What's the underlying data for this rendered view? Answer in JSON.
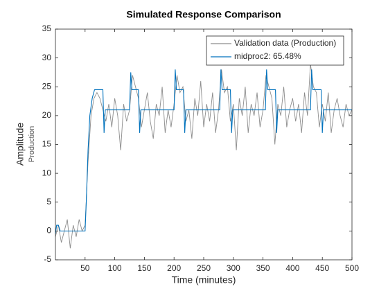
{
  "chart_data": {
    "type": "line",
    "title": "Simulated Response Comparison",
    "xlabel": "Time (minutes)",
    "ylabel": "Amplitude",
    "ylabel2": "Production",
    "xlim": [
      0,
      500
    ],
    "xticks": [
      50,
      100,
      150,
      200,
      250,
      300,
      350,
      400,
      450,
      500
    ],
    "ylim": [
      -5,
      35
    ],
    "yticks": [
      -5,
      0,
      5,
      10,
      15,
      20,
      25,
      30,
      35
    ],
    "grid": false,
    "legend": "northeast",
    "series": [
      {
        "name": "Validation data (Production)",
        "color": "#8c8c8c",
        "x": [
          0,
          5,
          10,
          15,
          20,
          25,
          30,
          35,
          40,
          45,
          50,
          55,
          60,
          65,
          70,
          75,
          80,
          85,
          90,
          95,
          100,
          105,
          110,
          115,
          120,
          125,
          130,
          135,
          140,
          145,
          150,
          155,
          160,
          165,
          170,
          175,
          180,
          185,
          190,
          195,
          200,
          205,
          210,
          215,
          220,
          225,
          230,
          235,
          240,
          245,
          250,
          255,
          260,
          265,
          270,
          275,
          280,
          285,
          290,
          295,
          300,
          305,
          310,
          315,
          320,
          325,
          330,
          335,
          340,
          345,
          350,
          355,
          360,
          365,
          370,
          375,
          380,
          385,
          390,
          395,
          400,
          405,
          410,
          415,
          420,
          425,
          430,
          435,
          440,
          445,
          450,
          455,
          460,
          465,
          470,
          475,
          480,
          485,
          490,
          495,
          500
        ],
        "values": [
          -1,
          1,
          -2,
          0,
          2,
          -3,
          1,
          -1,
          2,
          0,
          1,
          12,
          20,
          23,
          24,
          23,
          21,
          19,
          22,
          18,
          23,
          20,
          14,
          22,
          19,
          21,
          27,
          25,
          23,
          18,
          21,
          24,
          19,
          16,
          22,
          20,
          25,
          17,
          21,
          18,
          22,
          27,
          24,
          25,
          19,
          21,
          16,
          23,
          20,
          26,
          18,
          22,
          19,
          24,
          17,
          21,
          28,
          24,
          25,
          19,
          22,
          14,
          23,
          20,
          25,
          17,
          22,
          20,
          24,
          18,
          21,
          27,
          25,
          23,
          15,
          22,
          20,
          25,
          18,
          21,
          23,
          19,
          22,
          17,
          24,
          20,
          29,
          25,
          24,
          18,
          22,
          19,
          24,
          17,
          21,
          23,
          20,
          18,
          22,
          20,
          21
        ]
      },
      {
        "name": "midproc2: 65.48%",
        "color": "#0072bd",
        "x": [
          0,
          2,
          5,
          8,
          50,
          52,
          55,
          58,
          62,
          66,
          80,
          82,
          84,
          125,
          127,
          129,
          140,
          142,
          144,
          200,
          202,
          204,
          216,
          218,
          220,
          277,
          279,
          281,
          295,
          297,
          299,
          354,
          356,
          358,
          371,
          373,
          375,
          430,
          432,
          434,
          448,
          450,
          452,
          500
        ],
        "values": [
          -0.5,
          1,
          1,
          0,
          0,
          5,
          14,
          20,
          23,
          24.5,
          24.5,
          17,
          21,
          21,
          27.5,
          24.5,
          24.5,
          17,
          21,
          21,
          28,
          24.5,
          24.5,
          17,
          21,
          21,
          28,
          24.5,
          24.5,
          17,
          21,
          21,
          28,
          24.5,
          24.5,
          17,
          21,
          21,
          28,
          24.5,
          24.5,
          17,
          21,
          21
        ]
      }
    ]
  }
}
